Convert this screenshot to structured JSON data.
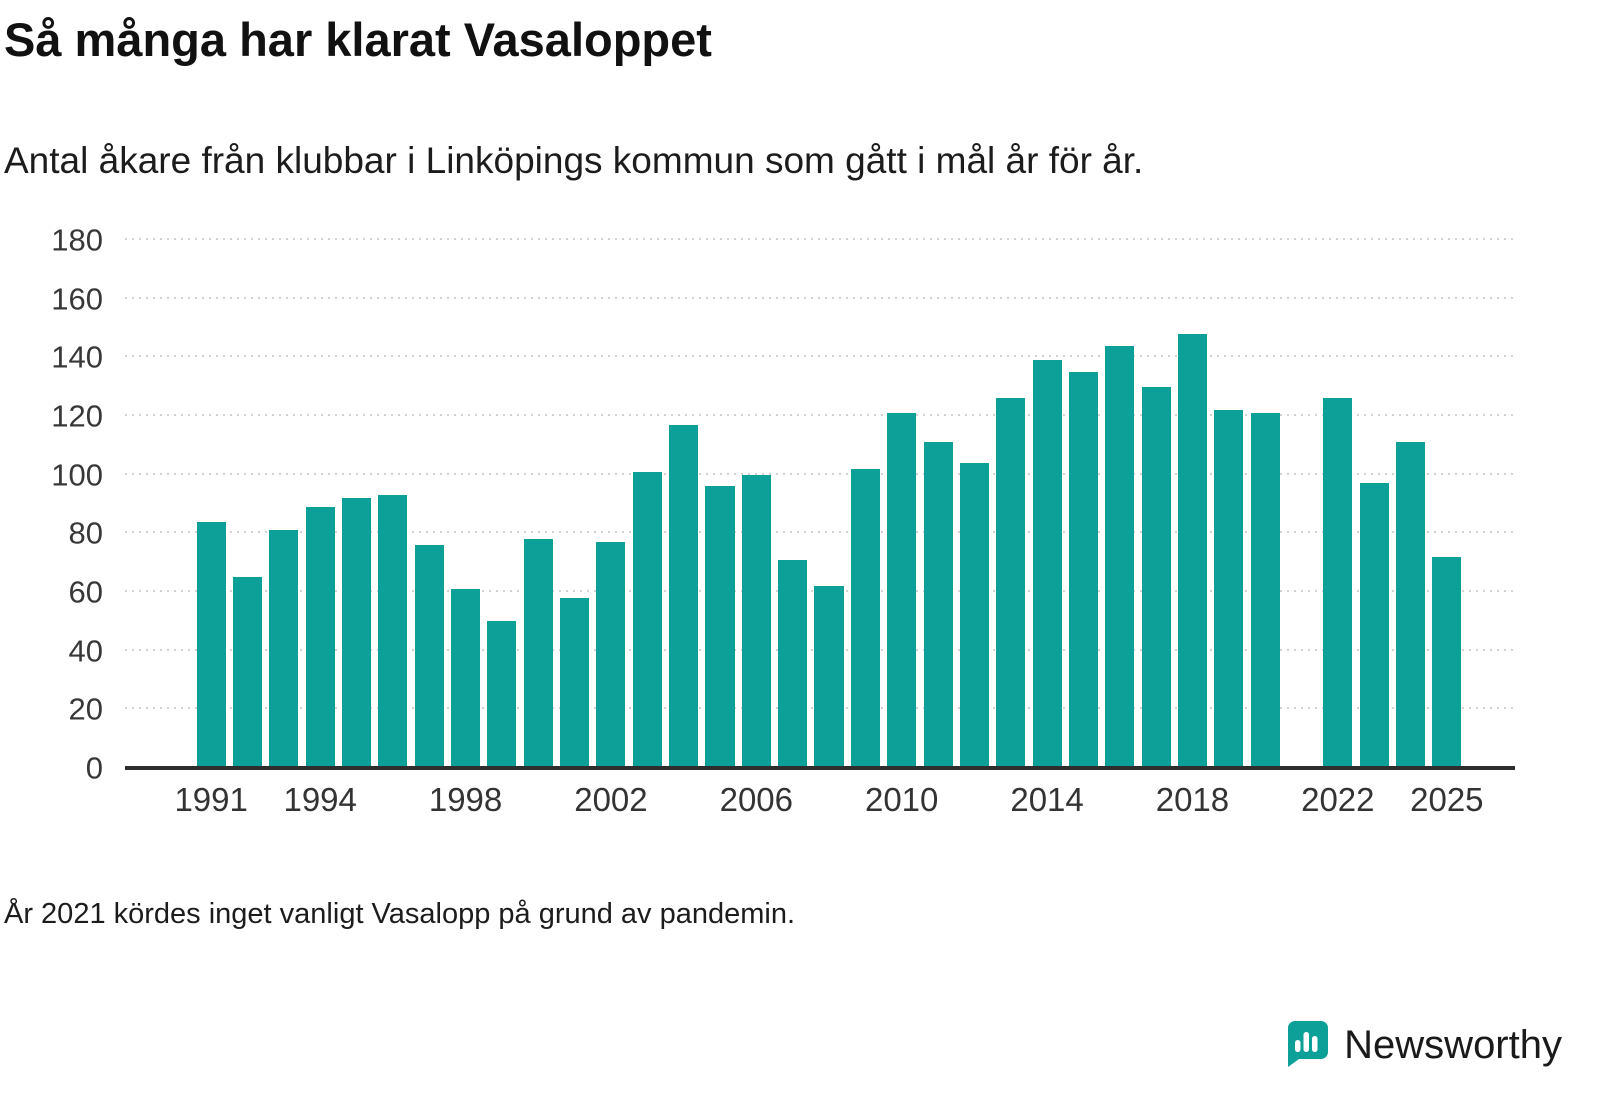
{
  "header": {
    "title": "Så många har klarat Vasaloppet",
    "subtitle": "Antal åkare från klubbar i Linköpings kommun som gått i mål år för år."
  },
  "chart_data": {
    "type": "bar",
    "title": "Så många har klarat Vasaloppet",
    "subtitle": "Antal åkare från klubbar i Linköpings kommun som gått i mål år för år.",
    "x": [
      1991,
      1992,
      1993,
      1994,
      1995,
      1996,
      1997,
      1998,
      1999,
      2000,
      2001,
      2002,
      2003,
      2004,
      2005,
      2006,
      2007,
      2008,
      2009,
      2010,
      2011,
      2012,
      2013,
      2014,
      2015,
      2016,
      2017,
      2018,
      2019,
      2020,
      2021,
      2022,
      2023,
      2024,
      2025
    ],
    "values": [
      84,
      65,
      81,
      89,
      92,
      93,
      76,
      61,
      50,
      78,
      58,
      77,
      101,
      117,
      96,
      100,
      71,
      62,
      102,
      121,
      111,
      104,
      126,
      139,
      135,
      144,
      130,
      148,
      122,
      121,
      null,
      126,
      97,
      111,
      72
    ],
    "ylim": [
      0,
      180
    ],
    "yticks": [
      0,
      20,
      40,
      60,
      80,
      100,
      120,
      140,
      160,
      180
    ],
    "xtick_labels": [
      1991,
      1994,
      1998,
      2002,
      2006,
      2010,
      2014,
      2018,
      2022,
      2025
    ],
    "bar_color": "#0da098",
    "grid": "horizontal-dotted",
    "legend": "none",
    "note": "Bar for 2021 is missing (no ordinary race held due to the pandemic)"
  },
  "footnote": {
    "text": "År 2021 kördes inget vanligt Vasalopp på grund av pandemin."
  },
  "logo": {
    "label": "Newsworthy",
    "color": "#0da098",
    "icon": "newsworthy-chart-bubble-icon"
  }
}
